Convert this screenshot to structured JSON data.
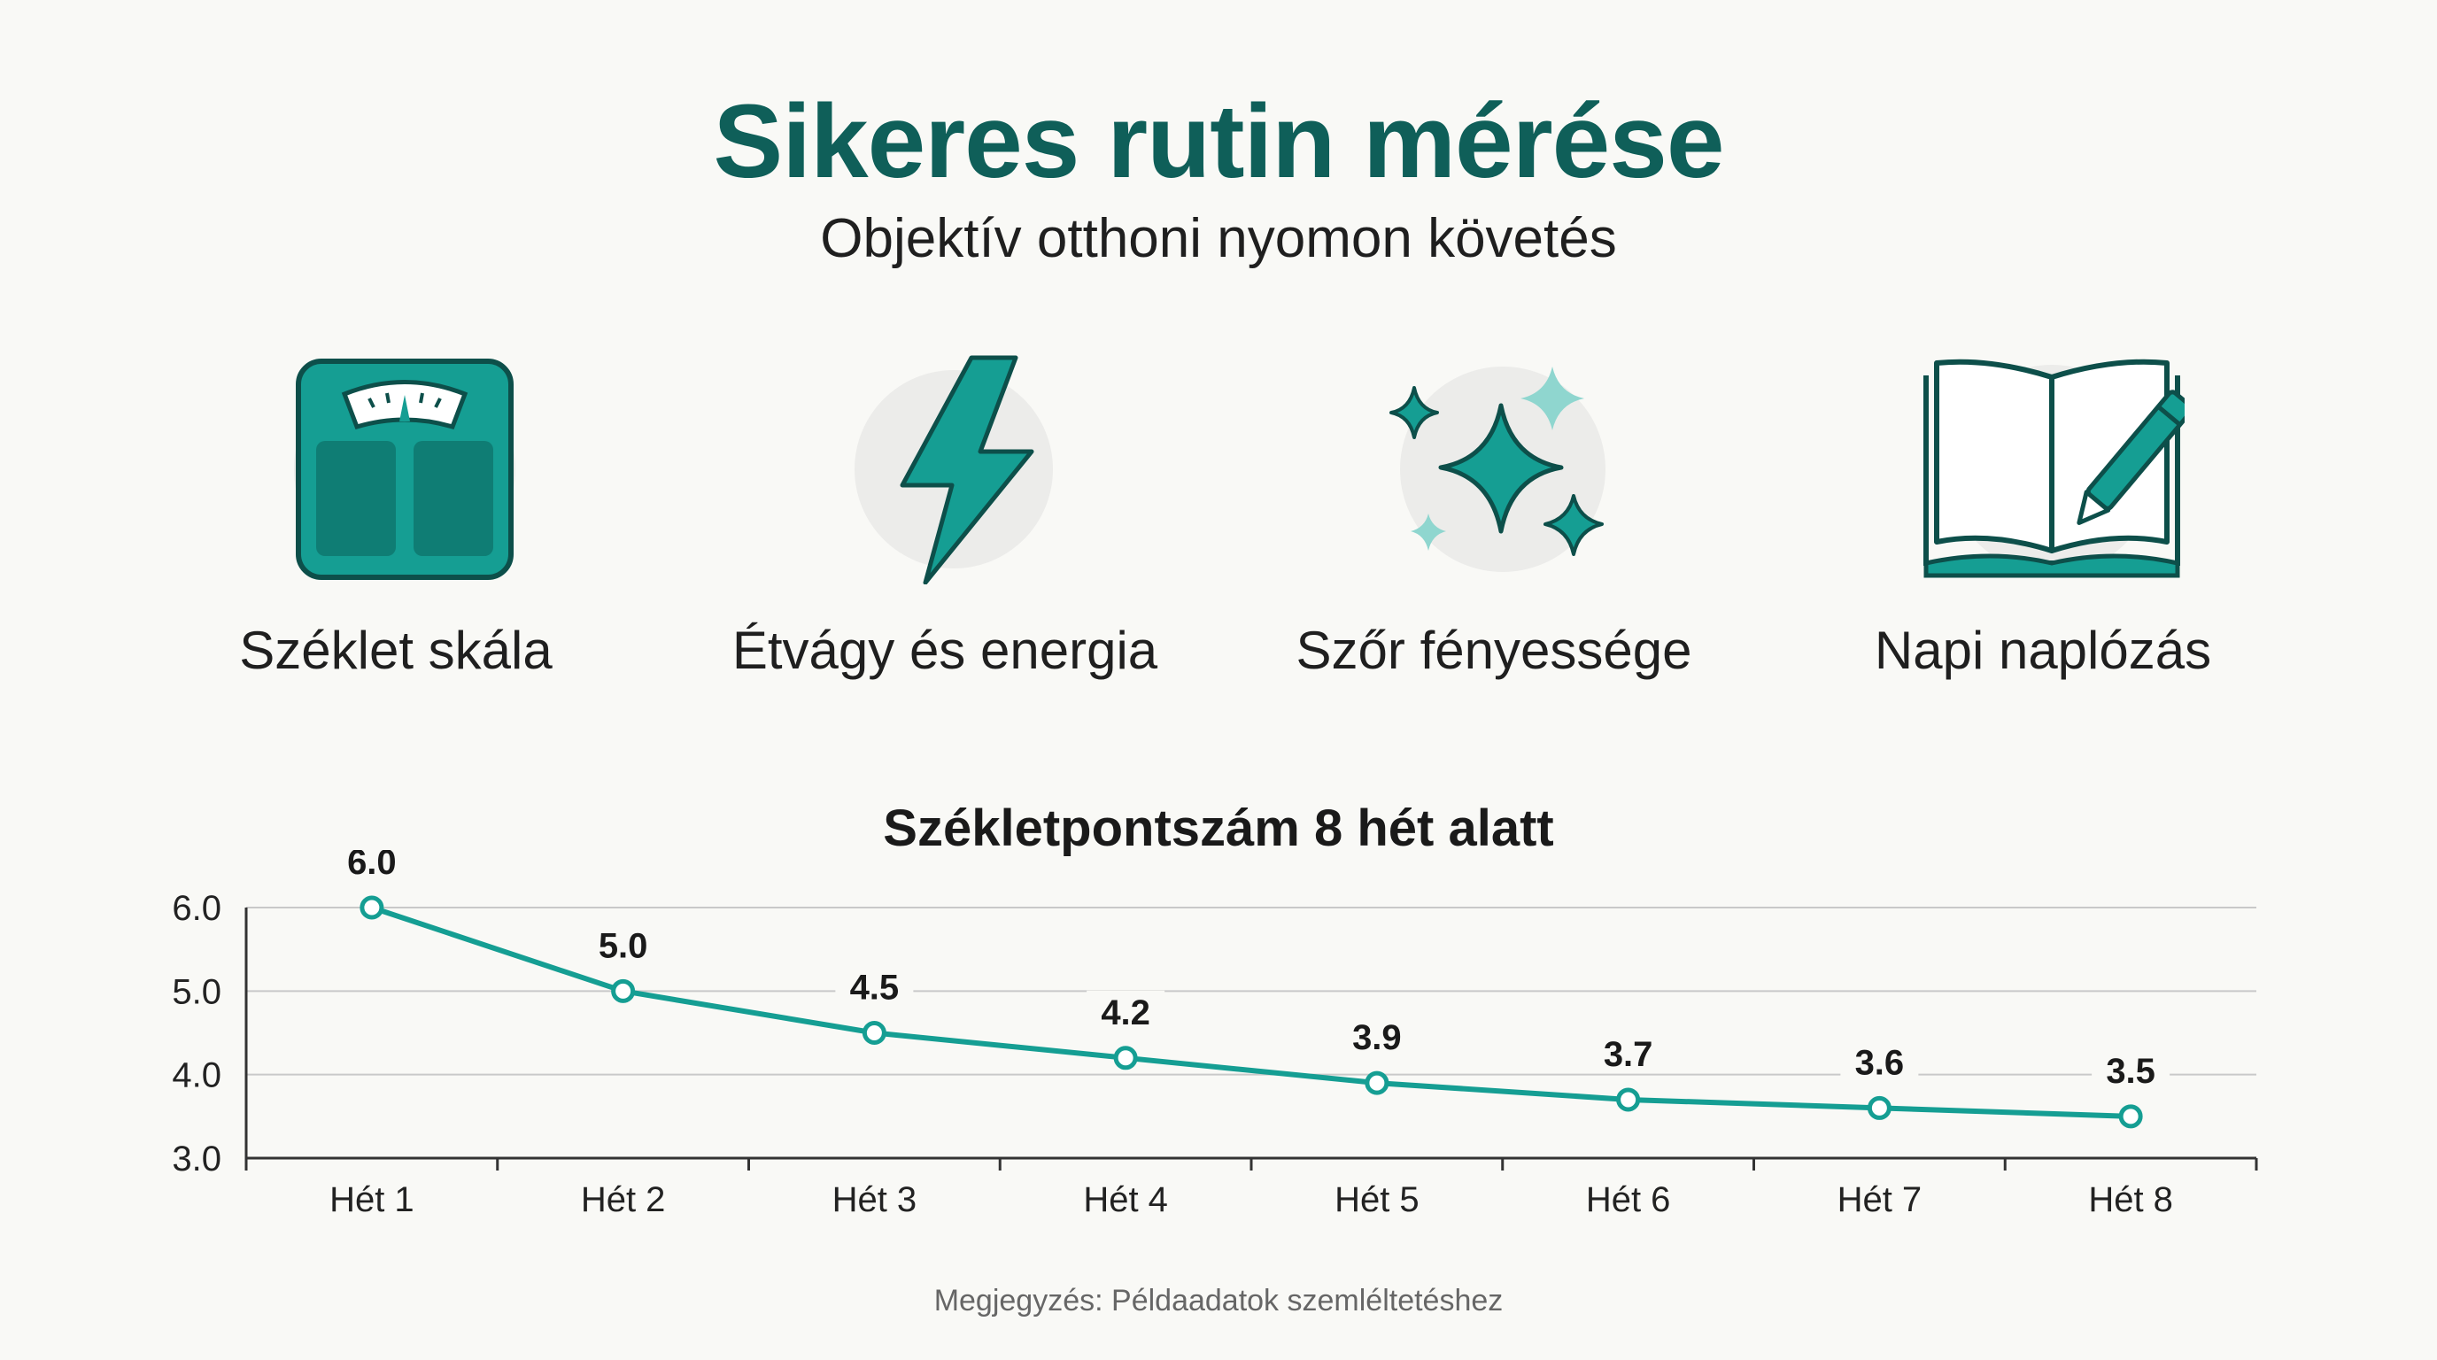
{
  "header": {
    "title": "Sikeres rutin mérése",
    "subtitle": "Objektív otthoni nyomon követés"
  },
  "features": [
    {
      "label": "Széklet skála",
      "icon": "scale-icon"
    },
    {
      "label": "Étvágy és energia",
      "icon": "lightning-icon"
    },
    {
      "label": "Szőr fényessége",
      "icon": "sparkle-icon"
    },
    {
      "label": "Napi naplózás",
      "icon": "notebook-pencil-icon"
    }
  ],
  "colors": {
    "accent": "#159e93",
    "accent_dark": "#0f5f59",
    "icon_outline": "#0d4f4a",
    "accent_light": "#8fd6cf",
    "grid": "#c9c9c9"
  },
  "chart_data": {
    "type": "line",
    "title": "Székletpontszám 8 hét alatt",
    "categories": [
      "Hét 1",
      "Hét 2",
      "Hét 3",
      "Hét 4",
      "Hét 5",
      "Hét 6",
      "Hét 7",
      "Hét 8"
    ],
    "series": [
      {
        "values": [
          6.0,
          5.0,
          4.5,
          4.2,
          3.9,
          3.7,
          3.6,
          3.5
        ]
      }
    ],
    "data_labels": [
      "6.0",
      "5.0",
      "4.5",
      "4.2",
      "3.9",
      "3.7",
      "3.6",
      "3.5"
    ],
    "yticks": [
      "3.0",
      "4.0",
      "5.0",
      "6.0"
    ],
    "ylim": [
      3.0,
      6.0
    ],
    "grid": true,
    "xlabel": "",
    "ylabel": ""
  },
  "note": "Megjegyzés: Példaadatok szemléltetéshez"
}
